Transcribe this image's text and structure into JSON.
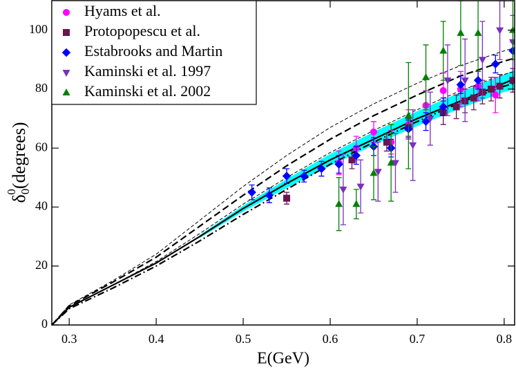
{
  "chart_data": {
    "type": "scatter",
    "xlabel": "E(GeV)",
    "ylabel": {
      "symbol": "δ",
      "subscript": "0",
      "superscript": "0",
      "unit": "(degrees)"
    },
    "xlim": [
      0.28,
      0.812
    ],
    "xticks": [
      0.3,
      0.4,
      0.5,
      0.6,
      0.7,
      0.8
    ],
    "ylim": [
      0,
      110
    ],
    "yticks": [
      0,
      20,
      40,
      60,
      80,
      100
    ],
    "legend": "upper-left",
    "series": [
      {
        "name": "Hyams et al.",
        "color": "#ff00ff",
        "marker": "circle",
        "x": [
          0.61,
          0.63,
          0.65,
          0.67,
          0.69,
          0.71,
          0.73,
          0.75,
          0.77,
          0.79
        ],
        "values": [
          55,
          60,
          65.5,
          62,
          68,
          74.5,
          79.5,
          80,
          81,
          78
        ],
        "errors": [
          4,
          4,
          3.5,
          4,
          5,
          5,
          6,
          6,
          5,
          6
        ]
      },
      {
        "name": "Protopopescu et al.",
        "color": "#6a1450",
        "marker": "square",
        "x": [
          0.55,
          0.625,
          0.665,
          0.69,
          0.73,
          0.745,
          0.755,
          0.765,
          0.775,
          0.785,
          0.795,
          0.81
        ],
        "values": [
          43,
          56,
          62,
          67,
          72,
          74,
          76,
          77,
          79,
          80,
          81,
          83
        ],
        "errors": [
          2,
          3,
          3,
          3,
          4,
          4,
          4,
          4,
          4,
          4,
          4,
          4
        ]
      },
      {
        "name": "Estabrooks and Martin",
        "color": "#0000ff",
        "marker": "diamond",
        "x": [
          0.51,
          0.53,
          0.55,
          0.57,
          0.59,
          0.61,
          0.63,
          0.65,
          0.67,
          0.69,
          0.71,
          0.73,
          0.75,
          0.77,
          0.79,
          0.81
        ],
        "values": [
          45,
          44,
          50.5,
          50.5,
          53,
          54.5,
          57.5,
          60.5,
          60,
          66.5,
          69,
          74,
          81.5,
          83,
          88.5,
          93
        ],
        "errors": [
          2.5,
          2.5,
          2.5,
          2,
          2.5,
          3,
          3,
          3,
          3,
          3,
          3,
          3,
          3,
          3,
          3,
          3
        ]
      },
      {
        "name": "Kaminski et al. 1997",
        "color": "#7a2fc0",
        "marker": "triangle-down",
        "x": [
          0.615,
          0.635,
          0.655,
          0.675,
          0.695,
          0.715,
          0.735,
          0.755,
          0.775,
          0.795,
          0.81
        ],
        "values": [
          46,
          47,
          52,
          55,
          61,
          70,
          83,
          83,
          90,
          100,
          96
        ],
        "errors": [
          12,
          9,
          10,
          10,
          12,
          9,
          12,
          14,
          13,
          10,
          9
        ]
      },
      {
        "name": "Kaminski et al. 2002",
        "color": "#008000",
        "marker": "triangle-up",
        "x": [
          0.61,
          0.63,
          0.65,
          0.67,
          0.69,
          0.71,
          0.73,
          0.75,
          0.77,
          0.81
        ],
        "values": [
          41,
          41,
          51.5,
          55,
          71,
          84,
          93,
          99,
          99,
          100
        ],
        "errors": [
          9,
          5,
          9,
          13,
          18,
          11,
          10,
          11,
          13,
          10
        ]
      }
    ],
    "band": {
      "color": "#00ffff",
      "x": [
        0.45,
        0.5,
        0.55,
        0.6,
        0.65,
        0.7,
        0.75,
        0.8,
        0.812
      ],
      "lower": [
        29.5,
        38.5,
        46.5,
        54,
        61,
        67.5,
        73.5,
        79,
        80
      ],
      "upper": [
        30.5,
        40.5,
        49.5,
        58,
        65.5,
        72.5,
        79,
        85,
        86.5
      ]
    },
    "curve_x": [
      0.28,
      0.3,
      0.35,
      0.4,
      0.45,
      0.5,
      0.55,
      0.6,
      0.65,
      0.7,
      0.75,
      0.8,
      0.812
    ],
    "curves": [
      {
        "color": "#000000",
        "style": "thin-dashed",
        "values": [
          0,
          6.8,
          15,
          24,
          35.5,
          47,
          57.5,
          67,
          75,
          82,
          88,
          93,
          94
        ]
      },
      {
        "color": "#000000",
        "style": "thin-dashed",
        "values": [
          0,
          6,
          13.5,
          21.5,
          31,
          41,
          50,
          58.5,
          66,
          73,
          79.5,
          85,
          86
        ]
      },
      {
        "color": "#000000",
        "style": "dashed",
        "values": [
          0,
          6.5,
          14.5,
          23,
          33.5,
          44,
          54,
          63,
          71,
          78,
          84.5,
          89.5,
          90.5
        ]
      },
      {
        "color": "#000000",
        "style": "dashdot",
        "values": [
          0,
          5.5,
          12.5,
          20,
          28.5,
          37.5,
          46,
          54.5,
          62,
          69,
          75.5,
          81,
          82
        ]
      },
      {
        "color": "#000000",
        "style": "solid",
        "values": [
          0,
          6,
          13.5,
          21,
          30,
          39.5,
          48,
          56,
          63,
          70,
          76,
          82,
          83.5
        ]
      }
    ]
  }
}
